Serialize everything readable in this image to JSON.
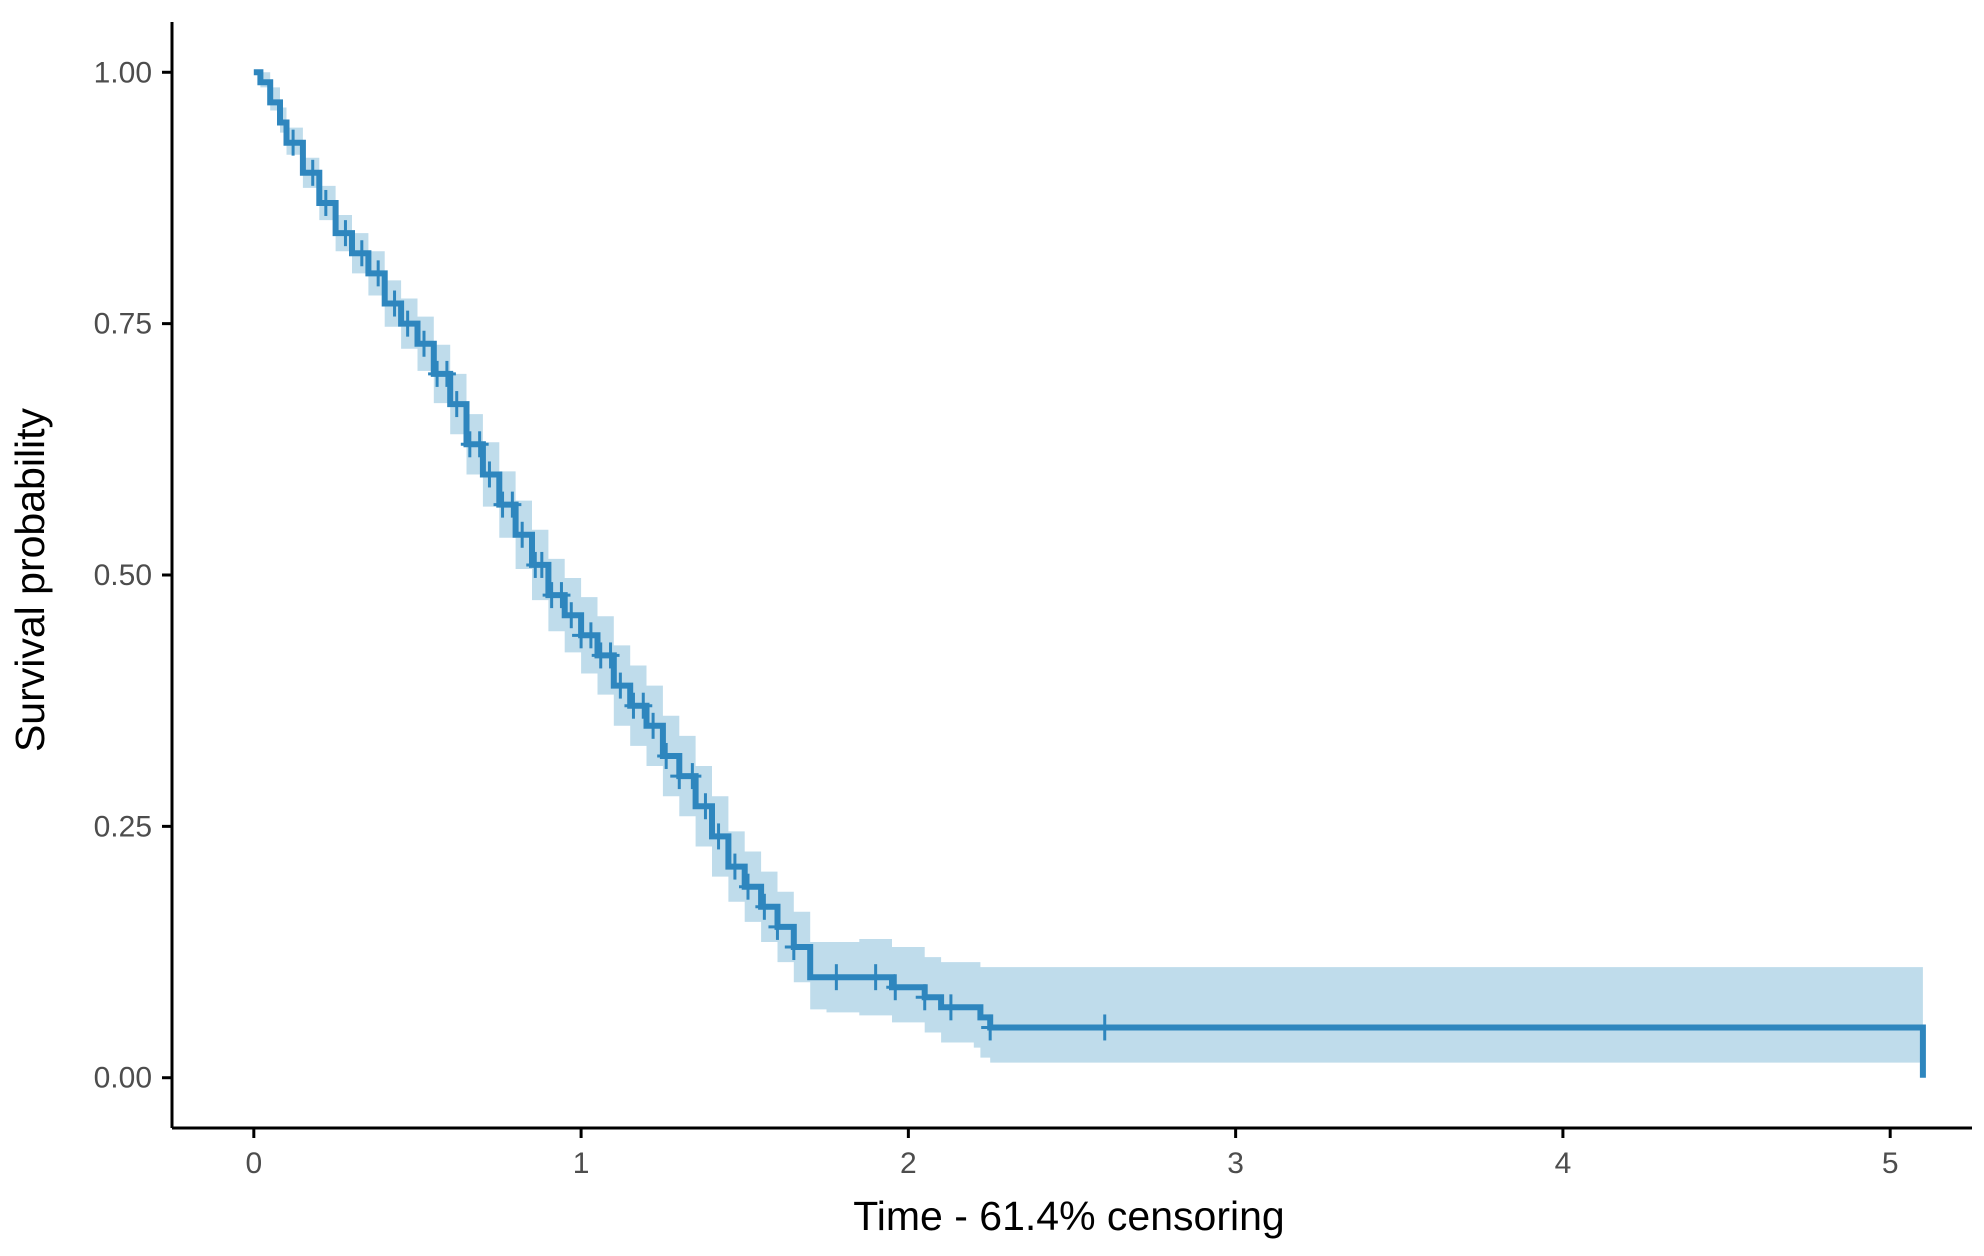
{
  "chart_data": {
    "type": "line",
    "subtype": "kaplan-meier-survival",
    "title": "",
    "xlabel": "Time - 61.4% censoring",
    "ylabel": "Survival probability",
    "xlim": [
      -0.25,
      5.25
    ],
    "ylim": [
      -0.05,
      1.05
    ],
    "x_ticks": [
      0,
      1,
      2,
      3,
      4,
      5
    ],
    "x_tick_labels": [
      "0",
      "1",
      "2",
      "3",
      "4",
      "5"
    ],
    "y_ticks": [
      0,
      0.25,
      0.5,
      0.75,
      1.0
    ],
    "y_tick_labels": [
      "0.00",
      "0.25",
      "0.50",
      "0.75",
      "1.00"
    ],
    "grid": false,
    "legend": "none",
    "colors": {
      "line": "#2E86BE",
      "band": "#BFDCEB",
      "axis": "#000000",
      "tick_text": "#4d4d4d"
    },
    "series": [
      {
        "x": [
          0,
          0.02,
          0.05,
          0.08,
          0.1,
          0.15,
          0.2,
          0.25,
          0.3,
          0.35,
          0.4,
          0.45,
          0.5,
          0.55,
          0.6,
          0.65,
          0.7,
          0.75,
          0.8,
          0.85,
          0.9,
          0.95,
          1.0,
          1.05,
          1.1,
          1.15,
          1.2,
          1.25,
          1.3,
          1.35,
          1.4,
          1.45,
          1.5,
          1.55,
          1.6,
          1.65,
          1.7,
          1.75,
          1.85,
          1.95,
          2.0,
          2.05,
          2.1,
          2.2,
          2.22,
          2.25,
          2.6,
          5.1
        ],
        "y": [
          1.0,
          0.99,
          0.97,
          0.95,
          0.93,
          0.9,
          0.87,
          0.84,
          0.82,
          0.8,
          0.77,
          0.75,
          0.73,
          0.7,
          0.67,
          0.63,
          0.6,
          0.57,
          0.54,
          0.51,
          0.48,
          0.46,
          0.44,
          0.42,
          0.39,
          0.37,
          0.35,
          0.32,
          0.3,
          0.27,
          0.24,
          0.21,
          0.19,
          0.17,
          0.15,
          0.13,
          0.1,
          0.1,
          0.1,
          0.09,
          0.09,
          0.08,
          0.07,
          0.07,
          0.06,
          0.05,
          0.05,
          0.05
        ],
        "ci_lower": [
          1.0,
          0.985,
          0.962,
          0.94,
          0.918,
          0.885,
          0.853,
          0.822,
          0.8,
          0.778,
          0.747,
          0.725,
          0.703,
          0.671,
          0.64,
          0.6,
          0.568,
          0.537,
          0.506,
          0.475,
          0.444,
          0.423,
          0.402,
          0.381,
          0.35,
          0.33,
          0.31,
          0.28,
          0.26,
          0.23,
          0.2,
          0.175,
          0.155,
          0.135,
          0.115,
          0.095,
          0.068,
          0.065,
          0.062,
          0.055,
          0.055,
          0.045,
          0.035,
          0.03,
          0.02,
          0.015,
          0.015,
          0.015
        ],
        "ci_upper": [
          1.0,
          1.0,
          0.985,
          0.965,
          0.945,
          0.915,
          0.887,
          0.858,
          0.84,
          0.822,
          0.793,
          0.775,
          0.757,
          0.729,
          0.7,
          0.66,
          0.632,
          0.603,
          0.574,
          0.545,
          0.516,
          0.497,
          0.478,
          0.459,
          0.43,
          0.41,
          0.39,
          0.36,
          0.34,
          0.31,
          0.28,
          0.245,
          0.225,
          0.205,
          0.185,
          0.165,
          0.135,
          0.135,
          0.138,
          0.13,
          0.13,
          0.12,
          0.115,
          0.115,
          0.11,
          0.11,
          0.11,
          0.11
        ],
        "censor_times": [
          0.12,
          0.18,
          0.22,
          0.28,
          0.33,
          0.38,
          0.43,
          0.47,
          0.52,
          0.56,
          0.59,
          0.62,
          0.66,
          0.69,
          0.72,
          0.76,
          0.79,
          0.82,
          0.86,
          0.88,
          0.91,
          0.94,
          0.97,
          1.0,
          1.03,
          1.06,
          1.09,
          1.12,
          1.16,
          1.19,
          1.22,
          1.26,
          1.3,
          1.34,
          1.38,
          1.42,
          1.47,
          1.51,
          1.56,
          1.6,
          1.65,
          1.78,
          1.9,
          1.96,
          2.05,
          2.13,
          2.25,
          2.6
        ]
      }
    ]
  }
}
